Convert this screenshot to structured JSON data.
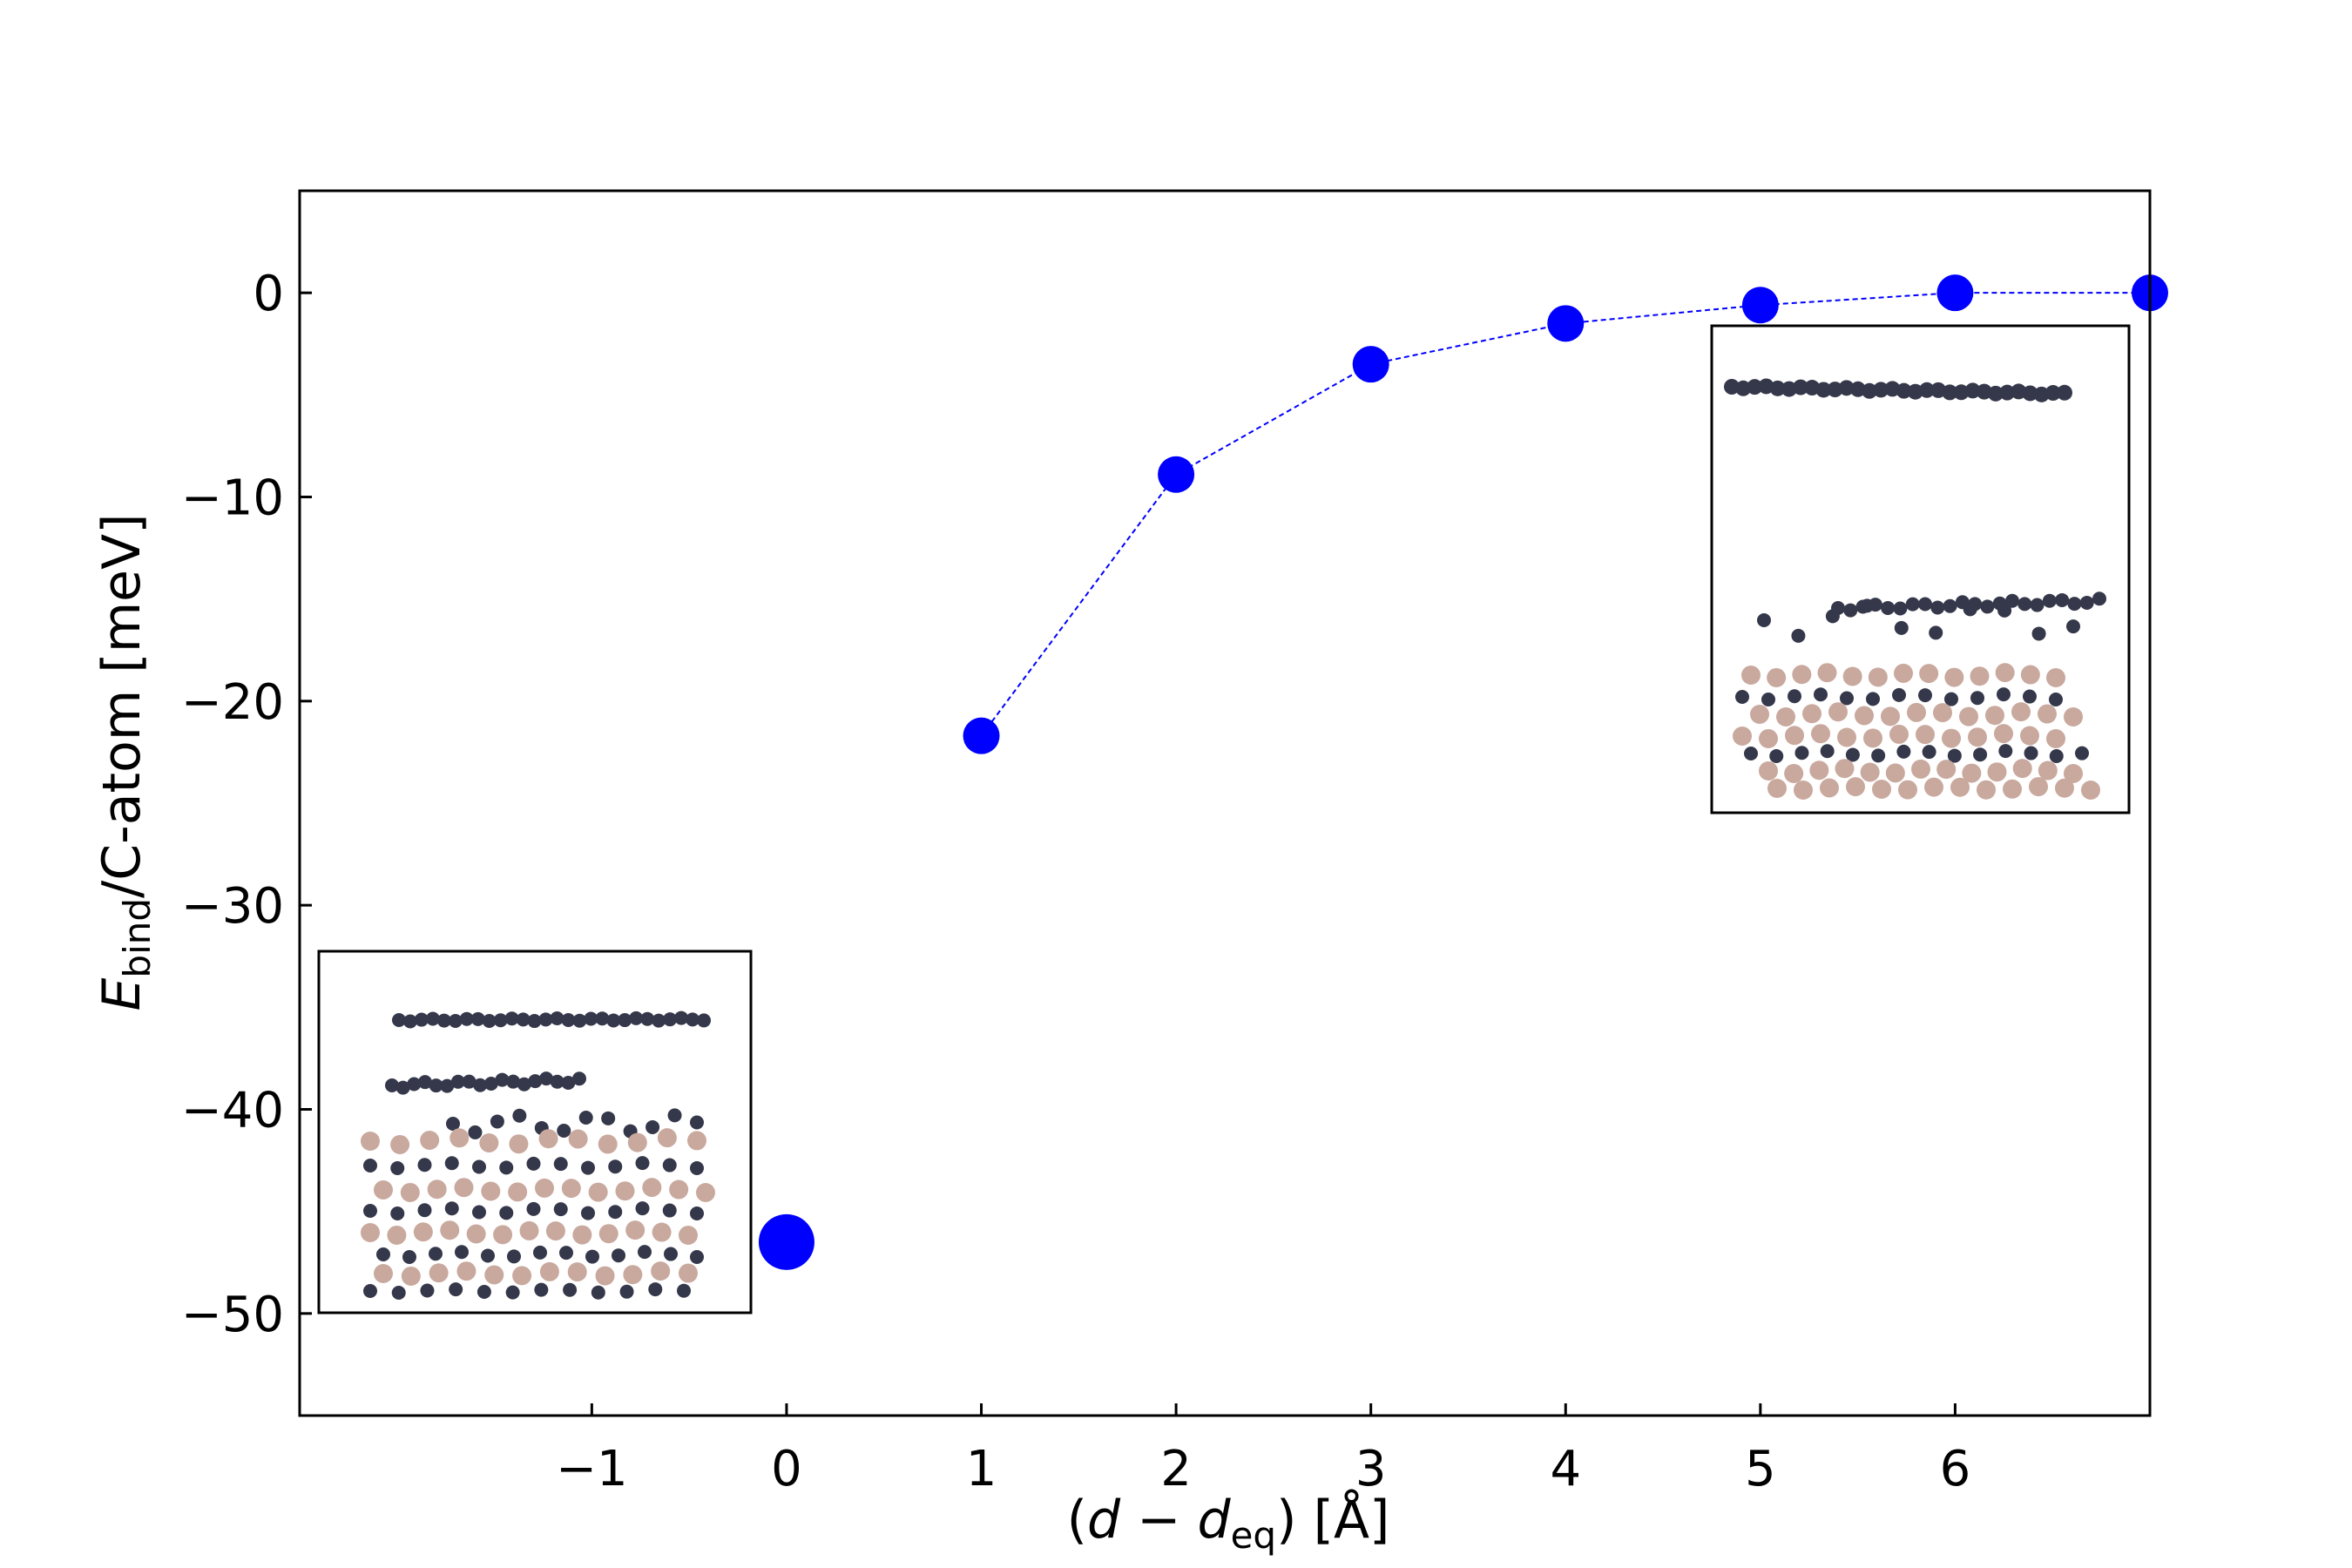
{
  "chart_data": {
    "type": "scatter",
    "xlabel": {
      "open": "(",
      "d": "d",
      "minus": " − ",
      "d2": "d",
      "sub": "eq",
      "close": ") [Å]"
    },
    "ylabel": {
      "E": "E",
      "sub": "bind",
      "rest": "/C-atom [meV]"
    },
    "xlim": [
      -2.5,
      7.0
    ],
    "ylim": [
      -55,
      5
    ],
    "x_ticks": [
      -1,
      0,
      1,
      2,
      3,
      4,
      5,
      6
    ],
    "x_tick_labels": [
      "−1",
      "0",
      "1",
      "2",
      "3",
      "4",
      "5",
      "6"
    ],
    "y_ticks": [
      0,
      -10,
      -20,
      -30,
      -40,
      -50
    ],
    "y_tick_labels": [
      "0",
      "−10",
      "−20",
      "−30",
      "−40",
      "−50"
    ],
    "grid": false,
    "colors": {
      "marker": "#0000ff",
      "line": "#0000ff",
      "carbon": "#35384a",
      "substrate": "#c9a99e"
    },
    "series": [
      {
        "style": "dashed-line-markers",
        "points": [
          {
            "x": 0,
            "y": -46.5
          },
          {
            "x": 1,
            "y": -21.7
          },
          {
            "x": 2,
            "y": -8.9
          },
          {
            "x": 3,
            "y": -3.5
          },
          {
            "x": 4,
            "y": -1.5
          },
          {
            "x": 5,
            "y": -0.6
          },
          {
            "x": 6,
            "y": 0.0
          },
          {
            "x": 7,
            "y": 0.0
          }
        ]
      }
    ],
    "insets": [
      {
        "description": "atomic structure at equilibrium separation",
        "placement": "lower-left"
      },
      {
        "description": "atomic structure with separated carbon layer",
        "placement": "upper-right"
      }
    ]
  }
}
